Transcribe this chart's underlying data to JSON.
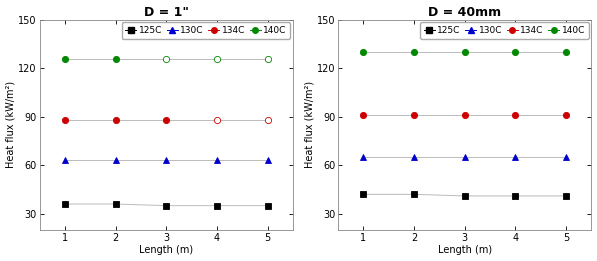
{
  "title_left": "D = 1\"",
  "title_right": "D = 40mm",
  "xlabel": "Length (m)",
  "ylabel": "Heat flux (kW/m²)",
  "x": [
    1,
    2,
    3,
    4,
    5
  ],
  "left": {
    "125C": [
      36,
      36,
      35,
      35,
      35
    ],
    "130C": [
      63,
      63,
      63,
      63,
      63
    ],
    "134C": [
      88,
      88,
      88,
      88,
      88
    ],
    "140C": [
      126,
      126,
      126,
      126,
      126
    ]
  },
  "right": {
    "125C": [
      42,
      42,
      41,
      41,
      41
    ],
    "130C": [
      65,
      65,
      65,
      65,
      65
    ],
    "134C": [
      91,
      91,
      91,
      91,
      91
    ],
    "140C": [
      130,
      130,
      130,
      130,
      130
    ]
  },
  "series_colors": {
    "125C": "#000000",
    "130C": "#0000cc",
    "134C": "#cc0000",
    "140C": "#008800"
  },
  "series_markers": {
    "125C": "s",
    "130C": "^",
    "134C": "o",
    "140C": "o"
  },
  "left_open": {
    "125C": [],
    "130C": [],
    "134C": [
      4,
      5
    ],
    "140C": [
      3,
      4,
      5
    ]
  },
  "right_open": {
    "125C": [],
    "130C": [],
    "134C": [],
    "140C": []
  },
  "line_color": "#bbbbbb",
  "ylim": [
    20,
    150
  ],
  "yticks": [
    30,
    60,
    90,
    120,
    150
  ],
  "xlim": [
    0.5,
    5.5
  ],
  "xticks": [
    1,
    2,
    3,
    4,
    5
  ],
  "legend_labels": [
    "125C",
    "130C",
    "134C",
    "140C"
  ],
  "title_fontsize": 9,
  "label_fontsize": 7,
  "tick_fontsize": 7,
  "legend_fontsize": 6.5,
  "marker_size": 4.5,
  "linewidth": 0.7
}
